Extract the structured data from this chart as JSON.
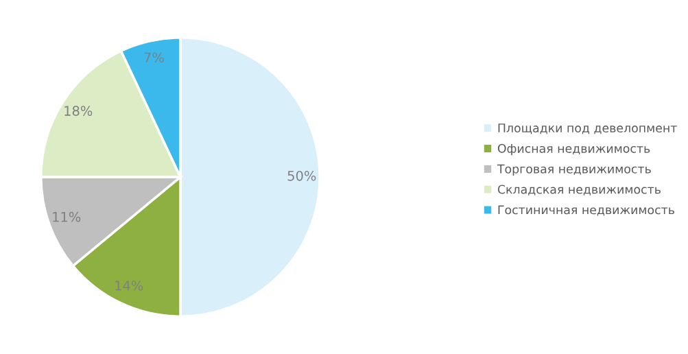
{
  "chart_data": {
    "type": "pie",
    "categories": [
      "Площадки под девелопмент",
      "Офисная недвижимость",
      "Торговая недвижимость",
      "Складская недвижимость",
      "Гостиничная недвижимость"
    ],
    "values": [
      50,
      14,
      11,
      18,
      7
    ],
    "colors": [
      "#d9f0fa",
      "#8db040",
      "#bfbfbf",
      "#dcedc5",
      "#3bb9ec"
    ],
    "value_labels": [
      "50%",
      "14%",
      "11%",
      "18%",
      "7%"
    ],
    "legend": "right"
  }
}
